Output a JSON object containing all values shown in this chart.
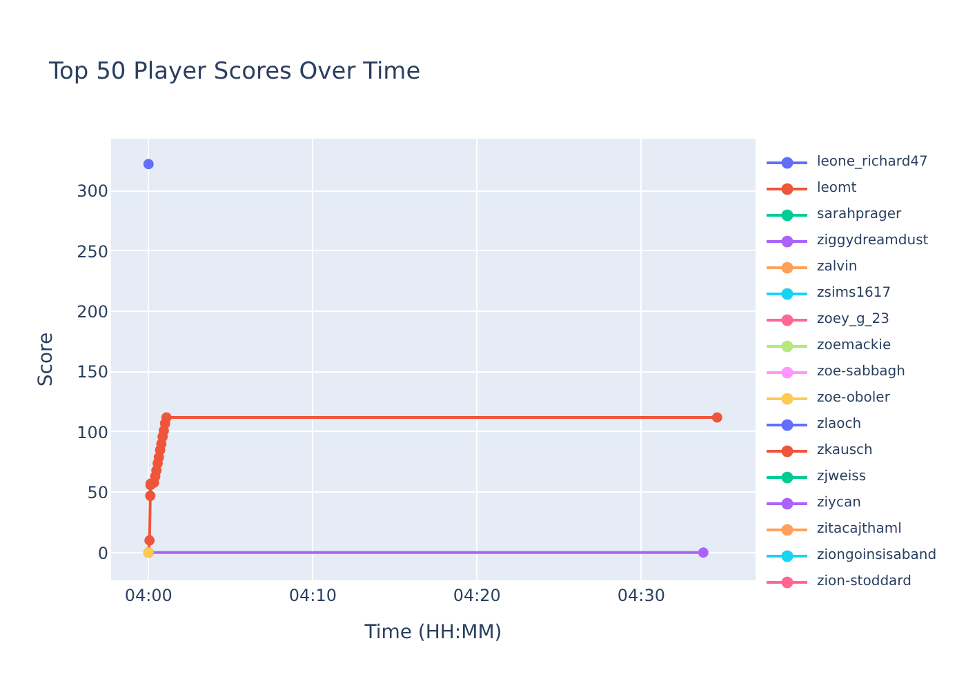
{
  "chart_data": {
    "type": "line",
    "title": "Top 50 Player Scores Over Time",
    "xlabel": "Time (HH:MM)",
    "ylabel": "Score",
    "xlim": [
      3.962,
      4.616
    ],
    "xticks": [
      {
        "value": 4,
        "label": "04:00"
      },
      {
        "value": 4.1667,
        "label": "04:10"
      },
      {
        "value": 4.3333,
        "label": "04:20"
      },
      {
        "value": 4.5,
        "label": "04:30"
      }
    ],
    "ylim": [
      -23,
      343
    ],
    "yticks": [
      0,
      50,
      100,
      150,
      200,
      250,
      300
    ],
    "grid": true,
    "legend": "right",
    "marker": "circle",
    "line_style": "solid",
    "series": [
      {
        "name": "leone_richard47",
        "color": "#636efa",
        "x": [
          4.0
        ],
        "values": [
          322
        ]
      },
      {
        "name": "leomt",
        "color": "#ef553b",
        "x": [
          4.0,
          4.001,
          4.0018,
          4.002,
          4.0021,
          4.0056,
          4.0068,
          4.008,
          4.0093,
          4.0105,
          4.0118,
          4.013,
          4.0143,
          4.0155,
          4.0168,
          4.0182,
          4.577
        ],
        "values": [
          0,
          10,
          47,
          56,
          57,
          58,
          63,
          68,
          74,
          79,
          85,
          90,
          96,
          101,
          107,
          112,
          112
        ]
      },
      {
        "name": "sarahprager",
        "color": "#00cc96"
      },
      {
        "name": "ziggydreamdust",
        "color": "#ab63fa",
        "x": [
          4.0,
          4.563
        ],
        "values": [
          0,
          0
        ]
      },
      {
        "name": "zalvin",
        "color": "#ffa15a"
      },
      {
        "name": "zsims1617",
        "color": "#19d3f3"
      },
      {
        "name": "zoey_g_23",
        "color": "#ff6692"
      },
      {
        "name": "zoemackie",
        "color": "#b6e880"
      },
      {
        "name": "zoe-sabbagh",
        "color": "#ff97ff"
      },
      {
        "name": "zoe-oboler",
        "color": "#fecb52",
        "x": [
          4.0
        ],
        "values": [
          0
        ]
      },
      {
        "name": "zlaoch",
        "color": "#636efa"
      },
      {
        "name": "zkausch",
        "color": "#ef553b"
      },
      {
        "name": "zjweiss",
        "color": "#00cc96"
      },
      {
        "name": "ziycan",
        "color": "#ab63fa"
      },
      {
        "name": "zitacajthaml",
        "color": "#ffa15a"
      },
      {
        "name": "ziongoinsisaband",
        "color": "#19d3f3"
      },
      {
        "name": "zion-stoddard",
        "color": "#ff6692"
      }
    ]
  }
}
